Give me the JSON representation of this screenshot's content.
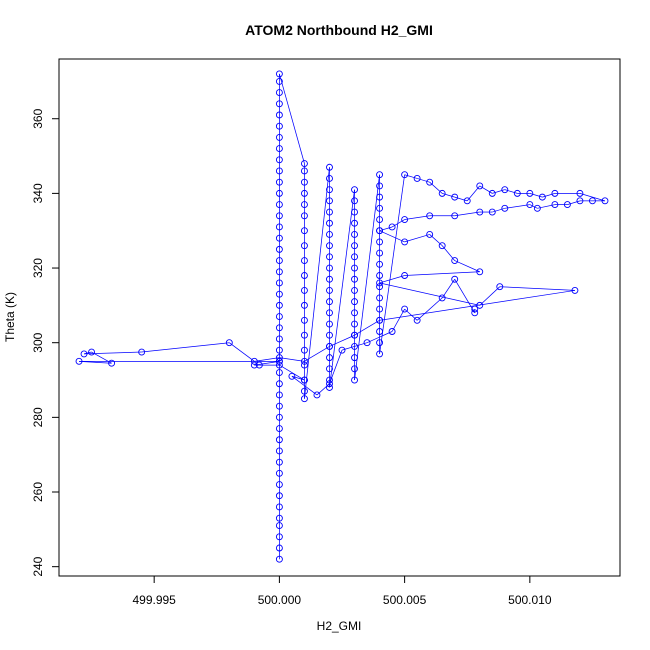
{
  "chart_data": {
    "type": "scatter",
    "title": "ATOM2 Northbound H2_GMI",
    "xlabel": "H2_GMI",
    "ylabel": "Theta (K)",
    "xlim": [
      499.9912,
      500.0136
    ],
    "ylim": [
      237.5,
      376.0
    ],
    "xticks": [
      {
        "value": 499.995,
        "label": "499.995"
      },
      {
        "value": 500.0,
        "label": "500.000"
      },
      {
        "value": 500.005,
        "label": "500.005"
      },
      {
        "value": 500.01,
        "label": "500.010"
      }
    ],
    "yticks": [
      {
        "value": 240,
        "label": "240"
      },
      {
        "value": 260,
        "label": "260"
      },
      {
        "value": 280,
        "label": "280"
      },
      {
        "value": 300,
        "label": "300"
      },
      {
        "value": 320,
        "label": "320"
      },
      {
        "value": 340,
        "label": "340"
      },
      {
        "value": 360,
        "label": "360"
      }
    ],
    "grid": false,
    "legend": "none",
    "series": [
      {
        "marker": "open-circle",
        "line": true,
        "color": "#0000ff",
        "points": [
          [
            500.0,
            242.0
          ],
          [
            500.0,
            245.0
          ],
          [
            500.0,
            248.0
          ],
          [
            500.0,
            251.0
          ],
          [
            500.0,
            253.0
          ],
          [
            500.0,
            256.0
          ],
          [
            500.0,
            259.0
          ],
          [
            500.0,
            262.0
          ],
          [
            500.0,
            265.0
          ],
          [
            500.0,
            268.0
          ],
          [
            500.0,
            271.0
          ],
          [
            500.0,
            274.0
          ],
          [
            500.0,
            277.0
          ],
          [
            500.0,
            280.0
          ],
          [
            500.0,
            283.0
          ],
          [
            500.0,
            286.0
          ],
          [
            500.0,
            289.0
          ],
          [
            500.0,
            292.0
          ],
          [
            500.0,
            295.0
          ],
          [
            500.0,
            298.0
          ],
          [
            500.0,
            301.0
          ],
          [
            500.0,
            304.0
          ],
          [
            500.0,
            307.0
          ],
          [
            500.0,
            310.0
          ],
          [
            500.0,
            313.0
          ],
          [
            500.0,
            316.0
          ],
          [
            500.0,
            319.0
          ],
          [
            500.0,
            322.0
          ],
          [
            500.0,
            325.0
          ],
          [
            500.0,
            328.0
          ],
          [
            500.0,
            331.0
          ],
          [
            500.0,
            334.0
          ],
          [
            500.0,
            337.0
          ],
          [
            500.0,
            340.0
          ],
          [
            500.0,
            343.0
          ],
          [
            500.0,
            346.0
          ],
          [
            500.0,
            349.0
          ],
          [
            500.0,
            352.0
          ],
          [
            500.0,
            355.0
          ],
          [
            500.0,
            358.0
          ],
          [
            500.0,
            361.0
          ],
          [
            500.0,
            364.0
          ],
          [
            500.0,
            367.0
          ],
          [
            500.0,
            370.0
          ],
          [
            500.0,
            372.0
          ],
          [
            500.001,
            348.0
          ],
          [
            500.001,
            346.0
          ],
          [
            500.001,
            343.0
          ],
          [
            500.001,
            340.0
          ],
          [
            500.001,
            337.0
          ],
          [
            500.001,
            334.0
          ],
          [
            500.001,
            330.0
          ],
          [
            500.001,
            326.0
          ],
          [
            500.001,
            322.0
          ],
          [
            500.001,
            318.0
          ],
          [
            500.001,
            314.0
          ],
          [
            500.001,
            310.0
          ],
          [
            500.001,
            306.0
          ],
          [
            500.001,
            302.0
          ],
          [
            500.001,
            298.0
          ],
          [
            500.001,
            294.0
          ],
          [
            500.001,
            290.0
          ],
          [
            500.001,
            287.0
          ],
          [
            500.001,
            285.0
          ],
          [
            500.002,
            347.0
          ],
          [
            500.002,
            344.0
          ],
          [
            500.002,
            341.0
          ],
          [
            500.002,
            338.0
          ],
          [
            500.002,
            335.0
          ],
          [
            500.002,
            332.0
          ],
          [
            500.002,
            329.0
          ],
          [
            500.002,
            326.0
          ],
          [
            500.002,
            323.0
          ],
          [
            500.002,
            320.0
          ],
          [
            500.002,
            317.0
          ],
          [
            500.002,
            314.0
          ],
          [
            500.002,
            311.0
          ],
          [
            500.002,
            308.0
          ],
          [
            500.002,
            305.0
          ],
          [
            500.002,
            302.0
          ],
          [
            500.002,
            299.0
          ],
          [
            500.002,
            296.0
          ],
          [
            500.002,
            293.0
          ],
          [
            500.002,
            290.0
          ],
          [
            500.002,
            288.0
          ],
          [
            500.003,
            341.0
          ],
          [
            500.003,
            338.0
          ],
          [
            500.003,
            335.0
          ],
          [
            500.003,
            332.0
          ],
          [
            500.003,
            329.0
          ],
          [
            500.003,
            326.0
          ],
          [
            500.003,
            323.0
          ],
          [
            500.003,
            320.0
          ],
          [
            500.003,
            317.0
          ],
          [
            500.003,
            314.0
          ],
          [
            500.003,
            311.0
          ],
          [
            500.003,
            308.0
          ],
          [
            500.003,
            305.0
          ],
          [
            500.003,
            302.0
          ],
          [
            500.003,
            299.0
          ],
          [
            500.003,
            296.0
          ],
          [
            500.003,
            293.0
          ],
          [
            500.003,
            290.0
          ],
          [
            500.004,
            345.0
          ],
          [
            500.004,
            342.0
          ],
          [
            500.004,
            339.0
          ],
          [
            500.004,
            336.0
          ],
          [
            500.004,
            333.0
          ],
          [
            500.004,
            330.0
          ],
          [
            500.004,
            327.0
          ],
          [
            500.004,
            324.0
          ],
          [
            500.004,
            321.0
          ],
          [
            500.004,
            318.0
          ],
          [
            500.004,
            315.0
          ],
          [
            500.004,
            312.0
          ],
          [
            500.004,
            309.0
          ],
          [
            500.004,
            306.0
          ],
          [
            500.004,
            303.0
          ],
          [
            500.004,
            300.0
          ],
          [
            500.004,
            297.0
          ],
          [
            500.005,
            345.0
          ],
          [
            500.0055,
            344.0
          ],
          [
            500.006,
            343.0
          ],
          [
            500.0065,
            340.0
          ],
          [
            500.007,
            339.0
          ],
          [
            500.0075,
            338.0
          ],
          [
            500.008,
            342.0
          ],
          [
            500.0085,
            340.0
          ],
          [
            500.009,
            341.0
          ],
          [
            500.0095,
            340.0
          ],
          [
            500.01,
            340.0
          ],
          [
            500.0105,
            339.0
          ],
          [
            500.011,
            340.0
          ],
          [
            500.012,
            340.0
          ],
          [
            500.013,
            338.0
          ],
          [
            500.0125,
            338.0
          ],
          [
            500.012,
            338.0
          ],
          [
            500.0115,
            337.0
          ],
          [
            500.011,
            337.0
          ],
          [
            500.0103,
            336.0
          ],
          [
            500.01,
            337.0
          ],
          [
            500.009,
            336.0
          ],
          [
            500.0085,
            335.0
          ],
          [
            500.008,
            335.0
          ],
          [
            500.007,
            334.0
          ],
          [
            500.006,
            334.0
          ],
          [
            500.005,
            333.0
          ],
          [
            500.0045,
            331.0
          ],
          [
            500.004,
            330.0
          ],
          [
            500.005,
            327.0
          ],
          [
            500.006,
            329.0
          ],
          [
            500.0065,
            326.0
          ],
          [
            500.007,
            322.0
          ],
          [
            500.008,
            319.0
          ],
          [
            500.005,
            318.0
          ],
          [
            500.004,
            316.0
          ],
          [
            500.008,
            310.0
          ],
          [
            500.0088,
            315.0
          ],
          [
            500.0118,
            314.0
          ],
          [
            500.004,
            306.0
          ],
          [
            500.003,
            302.0
          ],
          [
            500.002,
            299.0
          ],
          [
            500.001,
            295.0
          ],
          [
            500.0,
            296.0
          ],
          [
            499.999,
            295.0
          ],
          [
            499.998,
            300.0
          ],
          [
            499.9945,
            297.5
          ],
          [
            499.9922,
            297.0
          ],
          [
            499.9925,
            297.5
          ],
          [
            499.9933,
            294.5
          ],
          [
            499.992,
            295.0
          ],
          [
            500.0,
            295.0
          ],
          [
            499.999,
            294.0
          ],
          [
            499.9992,
            294.0
          ],
          [
            500.0,
            294.0
          ],
          [
            500.001,
            290.0
          ],
          [
            500.0005,
            291.0
          ],
          [
            500.0015,
            286.0
          ],
          [
            500.002,
            289.0
          ],
          [
            500.0025,
            298.0
          ],
          [
            500.0035,
            300.0
          ],
          [
            500.0045,
            303.0
          ],
          [
            500.005,
            309.0
          ],
          [
            500.0055,
            306.0
          ],
          [
            500.0065,
            312.0
          ],
          [
            500.007,
            317.0
          ],
          [
            500.0078,
            308.0
          ],
          [
            500.0078,
            309.0
          ]
        ]
      }
    ]
  }
}
